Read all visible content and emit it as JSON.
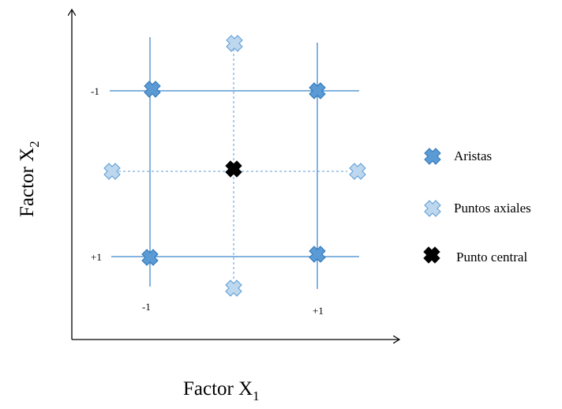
{
  "axes": {
    "x_label": "Factor X",
    "x_subscript": "1",
    "y_label": "Factor X",
    "y_subscript": "2"
  },
  "ticks": {
    "y_top": "-1",
    "y_bottom": "+1",
    "x_left": "-1",
    "x_right": "+1"
  },
  "legend": {
    "items": [
      {
        "label": "Aristas",
        "color": "#5B9BD5"
      },
      {
        "label": "Puntos axiales",
        "color": "#BDD7EE"
      },
      {
        "label": "Punto central",
        "color": "#000000"
      }
    ]
  },
  "colors": {
    "grid_line": "#5B9BD5",
    "axis": "#000000"
  }
}
